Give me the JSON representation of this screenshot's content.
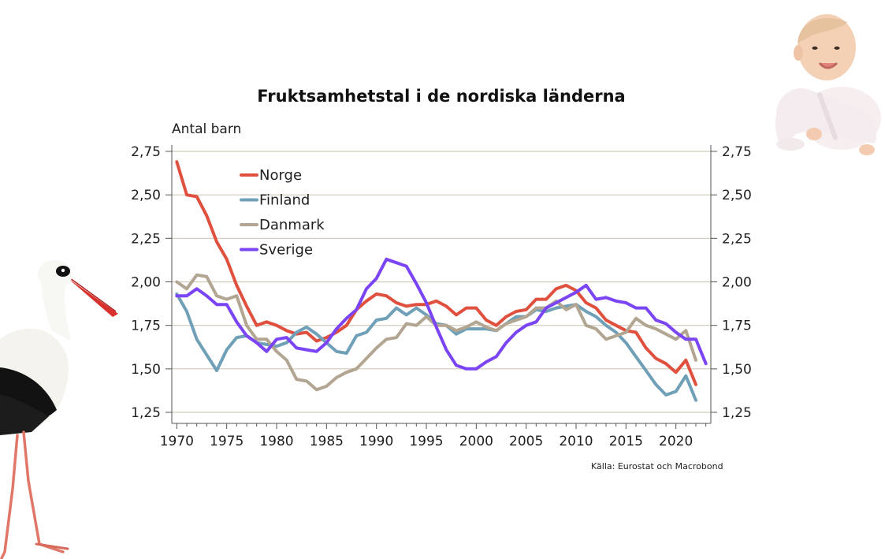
{
  "chart_data": {
    "type": "line",
    "title": "Fruktsamhetstal i de nordiska länderna",
    "ylabel": "Antal barn",
    "source": "Källa: Eurostat  och Macrobond",
    "ylim": [
      1.25,
      2.75
    ],
    "xlim": [
      1969.5,
      2023.5
    ],
    "y_ticks": [
      "2,75",
      "2,50",
      "2,25",
      "2,00",
      "1,75",
      "1,50",
      "1,25"
    ],
    "y_tick_values": [
      2.75,
      2.5,
      2.25,
      2.0,
      1.75,
      1.5,
      1.25
    ],
    "x_ticks": [
      "1970",
      "1975",
      "1980",
      "1985",
      "1990",
      "1995",
      "2000",
      "2005",
      "2010",
      "2015",
      "2020"
    ],
    "x_tick_values": [
      1970,
      1975,
      1980,
      1985,
      1990,
      1995,
      2000,
      2005,
      2010,
      2015,
      2020
    ],
    "grid": true,
    "legend_position": "top-left",
    "x": [
      1970,
      1971,
      1972,
      1973,
      1974,
      1975,
      1976,
      1977,
      1978,
      1979,
      1980,
      1981,
      1982,
      1983,
      1984,
      1985,
      1986,
      1987,
      1988,
      1989,
      1990,
      1991,
      1992,
      1993,
      1994,
      1995,
      1996,
      1997,
      1998,
      1999,
      2000,
      2001,
      2002,
      2003,
      2004,
      2005,
      2006,
      2007,
      2008,
      2009,
      2010,
      2011,
      2012,
      2013,
      2014,
      2015,
      2016,
      2017,
      2018,
      2019,
      2020,
      2021,
      2022,
      2023
    ],
    "series": [
      {
        "name": "Norge",
        "color": "#e0503e",
        "values": [
          2.69,
          2.5,
          2.49,
          2.38,
          2.23,
          2.13,
          1.98,
          1.86,
          1.75,
          1.77,
          1.75,
          1.72,
          1.7,
          1.71,
          1.66,
          1.68,
          1.71,
          1.75,
          1.84,
          1.89,
          1.93,
          1.92,
          1.88,
          1.86,
          1.87,
          1.87,
          1.89,
          1.86,
          1.81,
          1.85,
          1.85,
          1.78,
          1.75,
          1.8,
          1.83,
          1.84,
          1.9,
          1.9,
          1.96,
          1.98,
          1.95,
          1.88,
          1.85,
          1.78,
          1.75,
          1.72,
          1.71,
          1.62,
          1.56,
          1.53,
          1.48,
          1.55,
          1.41,
          null
        ]
      },
      {
        "name": "Finland",
        "color": "#6fa0b7",
        "values": [
          1.93,
          1.83,
          1.67,
          1.58,
          1.49,
          1.61,
          1.68,
          1.69,
          1.65,
          1.64,
          1.63,
          1.65,
          1.71,
          1.74,
          1.7,
          1.65,
          1.6,
          1.59,
          1.69,
          1.71,
          1.78,
          1.79,
          1.85,
          1.81,
          1.85,
          1.81,
          1.76,
          1.75,
          1.7,
          1.73,
          1.73,
          1.73,
          1.72,
          1.76,
          1.8,
          1.8,
          1.84,
          1.83,
          1.85,
          1.86,
          1.87,
          1.83,
          1.8,
          1.75,
          1.71,
          1.65,
          1.57,
          1.49,
          1.41,
          1.35,
          1.37,
          1.46,
          1.32,
          null
        ]
      },
      {
        "name": "Danmark",
        "color": "#b2a693",
        "values": [
          2.0,
          1.96,
          2.04,
          2.03,
          1.92,
          1.9,
          1.92,
          1.75,
          1.67,
          1.67,
          1.6,
          1.55,
          1.44,
          1.43,
          1.38,
          1.4,
          1.45,
          1.48,
          1.5,
          1.56,
          1.62,
          1.67,
          1.68,
          1.76,
          1.75,
          1.8,
          1.75,
          1.75,
          1.72,
          1.74,
          1.77,
          1.74,
          1.72,
          1.76,
          1.78,
          1.8,
          1.85,
          1.85,
          1.89,
          1.84,
          1.87,
          1.75,
          1.73,
          1.67,
          1.69,
          1.71,
          1.79,
          1.75,
          1.73,
          1.7,
          1.67,
          1.72,
          1.55,
          null
        ]
      },
      {
        "name": "Sverige",
        "color": "#7b45f5",
        "values": [
          1.92,
          1.92,
          1.96,
          1.92,
          1.87,
          1.87,
          1.77,
          1.69,
          1.65,
          1.6,
          1.67,
          1.68,
          1.62,
          1.61,
          1.6,
          1.65,
          1.73,
          1.79,
          1.84,
          1.96,
          2.02,
          2.13,
          2.11,
          2.09,
          1.99,
          1.88,
          1.74,
          1.61,
          1.52,
          1.5,
          1.5,
          1.54,
          1.57,
          1.65,
          1.71,
          1.75,
          1.77,
          1.85,
          1.88,
          1.91,
          1.94,
          1.98,
          1.9,
          1.91,
          1.89,
          1.88,
          1.85,
          1.85,
          1.78,
          1.76,
          1.71,
          1.67,
          1.67,
          1.53
        ]
      }
    ]
  }
}
